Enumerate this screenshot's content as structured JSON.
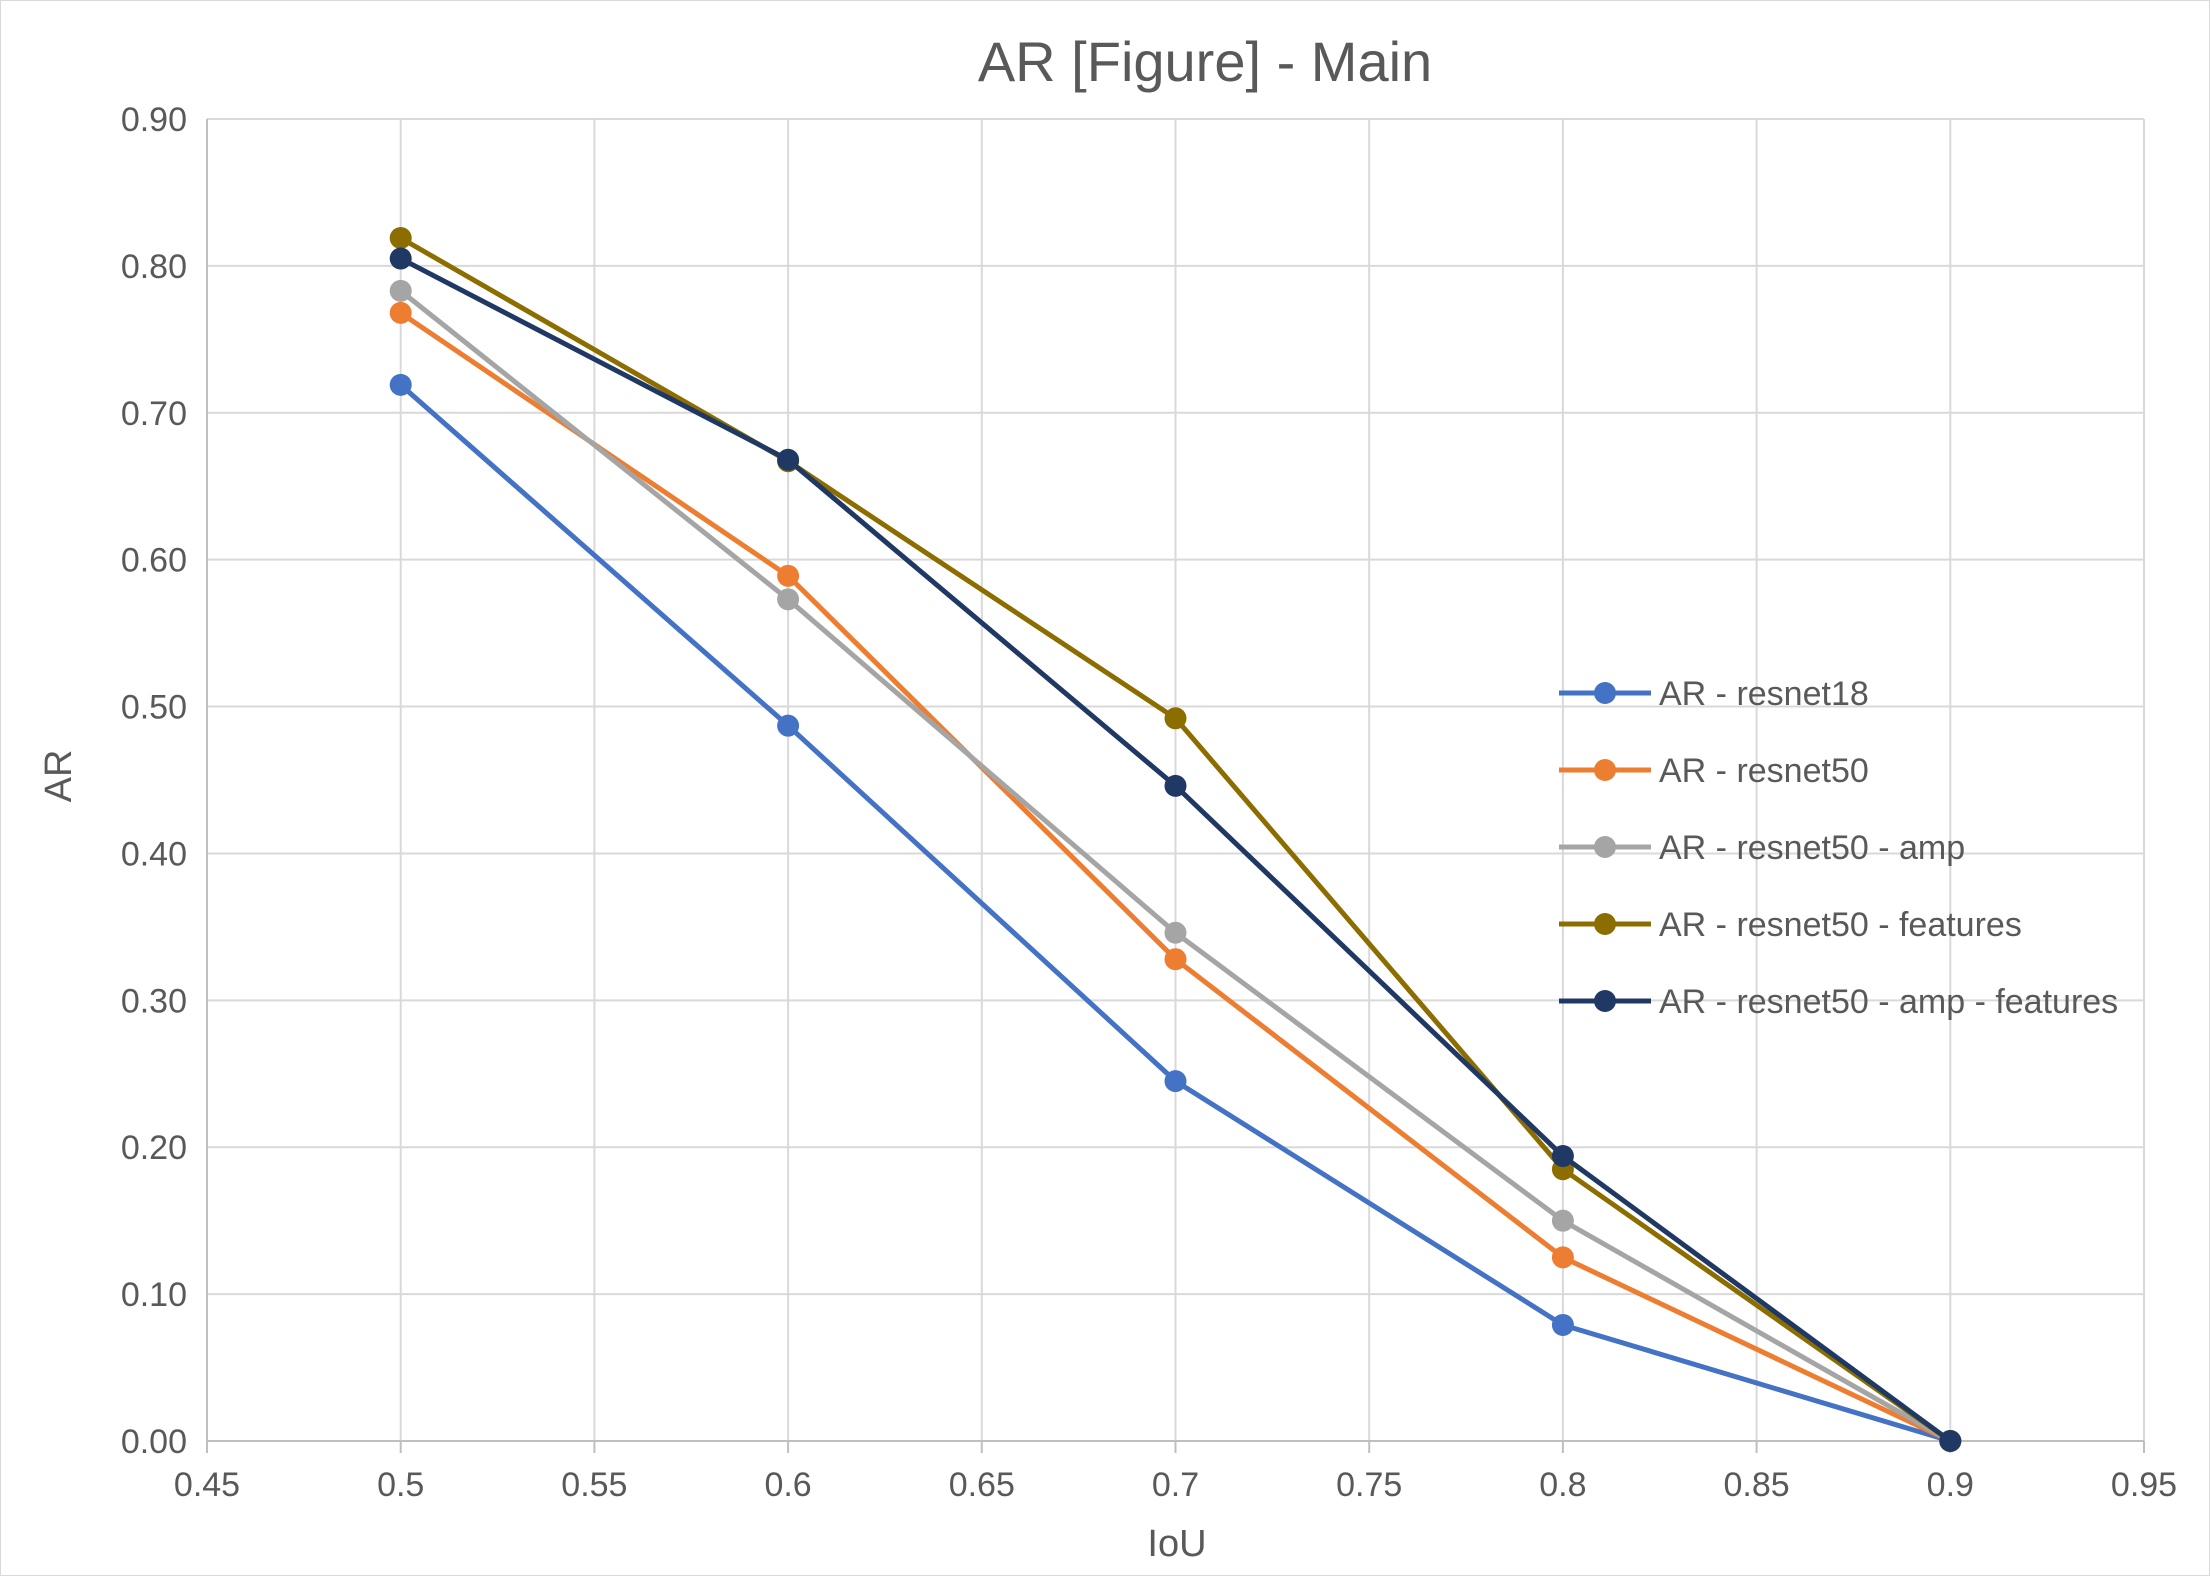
{
  "chart_data": {
    "type": "line",
    "title": "AR [Figure] - Main",
    "xlabel": "IoU",
    "ylabel": "AR",
    "xlim": [
      0.45,
      0.95
    ],
    "ylim": [
      0.0,
      0.9
    ],
    "x_ticks": [
      "0.45",
      "0.5",
      "0.55",
      "0.6",
      "0.65",
      "0.7",
      "0.75",
      "0.8",
      "0.85",
      "0.9",
      "0.95"
    ],
    "y_ticks": [
      "0.00",
      "0.10",
      "0.20",
      "0.30",
      "0.40",
      "0.50",
      "0.60",
      "0.70",
      "0.80",
      "0.90"
    ],
    "grid": true,
    "legend_position": "right",
    "x": [
      0.5,
      0.6,
      0.7,
      0.8,
      0.9
    ],
    "series": [
      {
        "name": "AR - resnet18",
        "color": "#4472C4",
        "values": [
          0.719,
          0.487,
          0.245,
          0.079,
          0.0
        ]
      },
      {
        "name": "AR - resnet50",
        "color": "#ED7D31",
        "values": [
          0.768,
          0.589,
          0.328,
          0.125,
          0.0
        ]
      },
      {
        "name": "AR - resnet50 - amp",
        "color": "#A5A5A5",
        "values": [
          0.783,
          0.573,
          0.346,
          0.15,
          0.0
        ]
      },
      {
        "name": "AR - resnet50 - features",
        "color": "#8C6D00",
        "values": [
          0.819,
          0.667,
          0.492,
          0.185,
          0.0
        ]
      },
      {
        "name": "AR - resnet50 - amp - features",
        "color": "#203864",
        "values": [
          0.805,
          0.668,
          0.446,
          0.194,
          0.0
        ]
      }
    ]
  }
}
